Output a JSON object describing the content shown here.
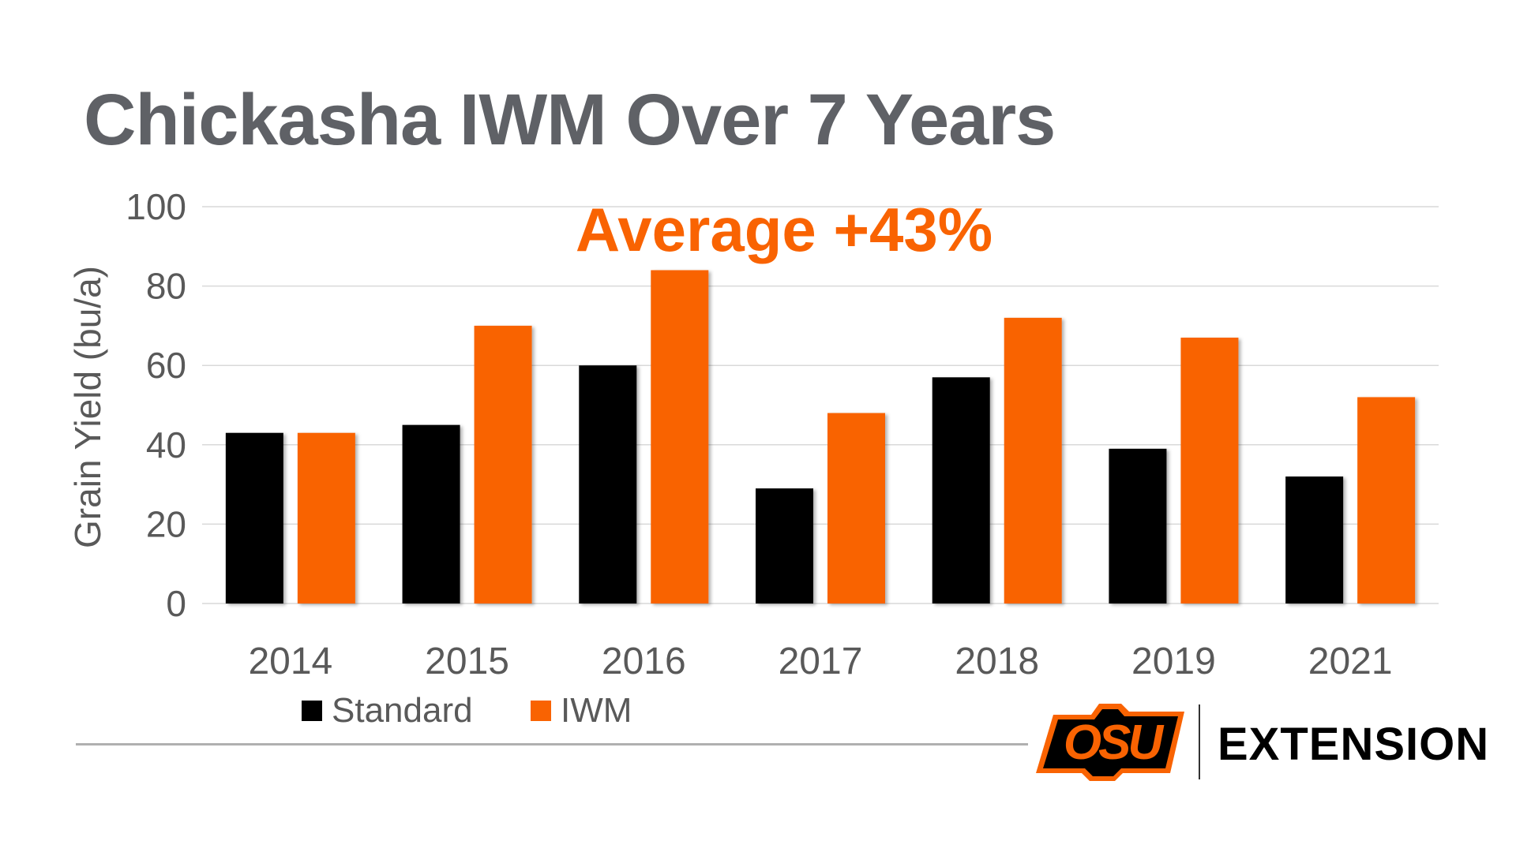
{
  "title": "Chickasha IWM Over 7 Years",
  "footer": {
    "extension_label": "EXTENSION",
    "logo_text": "OSU"
  },
  "colors": {
    "standard": "#000000",
    "iwm": "#f96302",
    "title": "#5f6166",
    "axis_text": "#595959",
    "grid": "#d9d9d9"
  },
  "chart_data": {
    "type": "bar",
    "title": "Chickasha IWM Over 7 Years",
    "annotation": "Average +43%",
    "xlabel": "",
    "ylabel": "Grain Yield (bu/a)",
    "ylim": [
      0,
      100
    ],
    "yticks": [
      0,
      20,
      40,
      60,
      80,
      100
    ],
    "grid": true,
    "legend_position": "bottom-left",
    "categories": [
      "2014",
      "2015",
      "2016",
      "2017",
      "2018",
      "2019",
      "2021"
    ],
    "series": [
      {
        "name": "Standard",
        "color": "#000000",
        "values": [
          43,
          45,
          60,
          29,
          57,
          39,
          32
        ]
      },
      {
        "name": "IWM",
        "color": "#f96302",
        "values": [
          43,
          70,
          84,
          48,
          72,
          67,
          52
        ]
      }
    ]
  }
}
